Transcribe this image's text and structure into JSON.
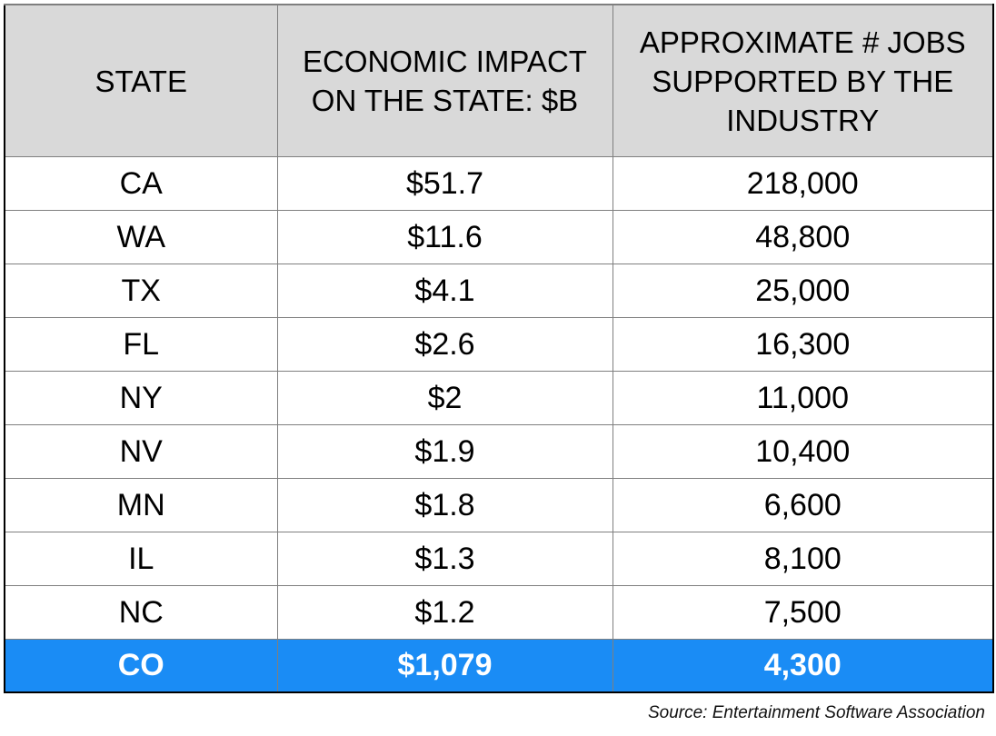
{
  "table": {
    "headers": [
      "STATE",
      "ECONOMIC IMPACT ON THE STATE: $B",
      "APPROXIMATE # JOBS SUPPORTED BY THE INDUSTRY"
    ],
    "rows": [
      [
        "CA",
        "$51.7",
        "218,000"
      ],
      [
        "WA",
        "$11.6",
        "48,800"
      ],
      [
        "TX",
        "$4.1",
        "25,000"
      ],
      [
        "FL",
        "$2.6",
        "16,300"
      ],
      [
        "NY",
        "$2",
        "11,000"
      ],
      [
        "NV",
        "$1.9",
        "10,400"
      ],
      [
        "MN",
        "$1.8",
        "6,600"
      ],
      [
        "IL",
        "$1.3",
        "8,100"
      ],
      [
        "NC",
        "$1.2",
        "7,500"
      ],
      [
        "CO",
        "$1,079",
        "4,300"
      ]
    ],
    "highlight_row_index": 9,
    "header_bg": "#d9d9d9",
    "highlight_bg": "#1a8cf5",
    "highlight_text": "#ffffff"
  },
  "chart_data": {
    "type": "table",
    "columns": [
      "STATE",
      "ECONOMIC IMPACT ON THE STATE: $B",
      "APPROXIMATE # JOBS SUPPORTED BY THE INDUSTRY"
    ],
    "rows": [
      [
        "CA",
        "$51.7",
        "218,000"
      ],
      [
        "WA",
        "$11.6",
        "48,800"
      ],
      [
        "TX",
        "$4.1",
        "25,000"
      ],
      [
        "FL",
        "$2.6",
        "16,300"
      ],
      [
        "NY",
        "$2",
        "11,000"
      ],
      [
        "NV",
        "$1.9",
        "10,400"
      ],
      [
        "MN",
        "$1.8",
        "6,600"
      ],
      [
        "IL",
        "$1.3",
        "8,100"
      ],
      [
        "NC",
        "$1.2",
        "7,500"
      ],
      [
        "CO",
        "$1,079",
        "4,300"
      ]
    ]
  },
  "source": "Source: Entertainment Software Association"
}
